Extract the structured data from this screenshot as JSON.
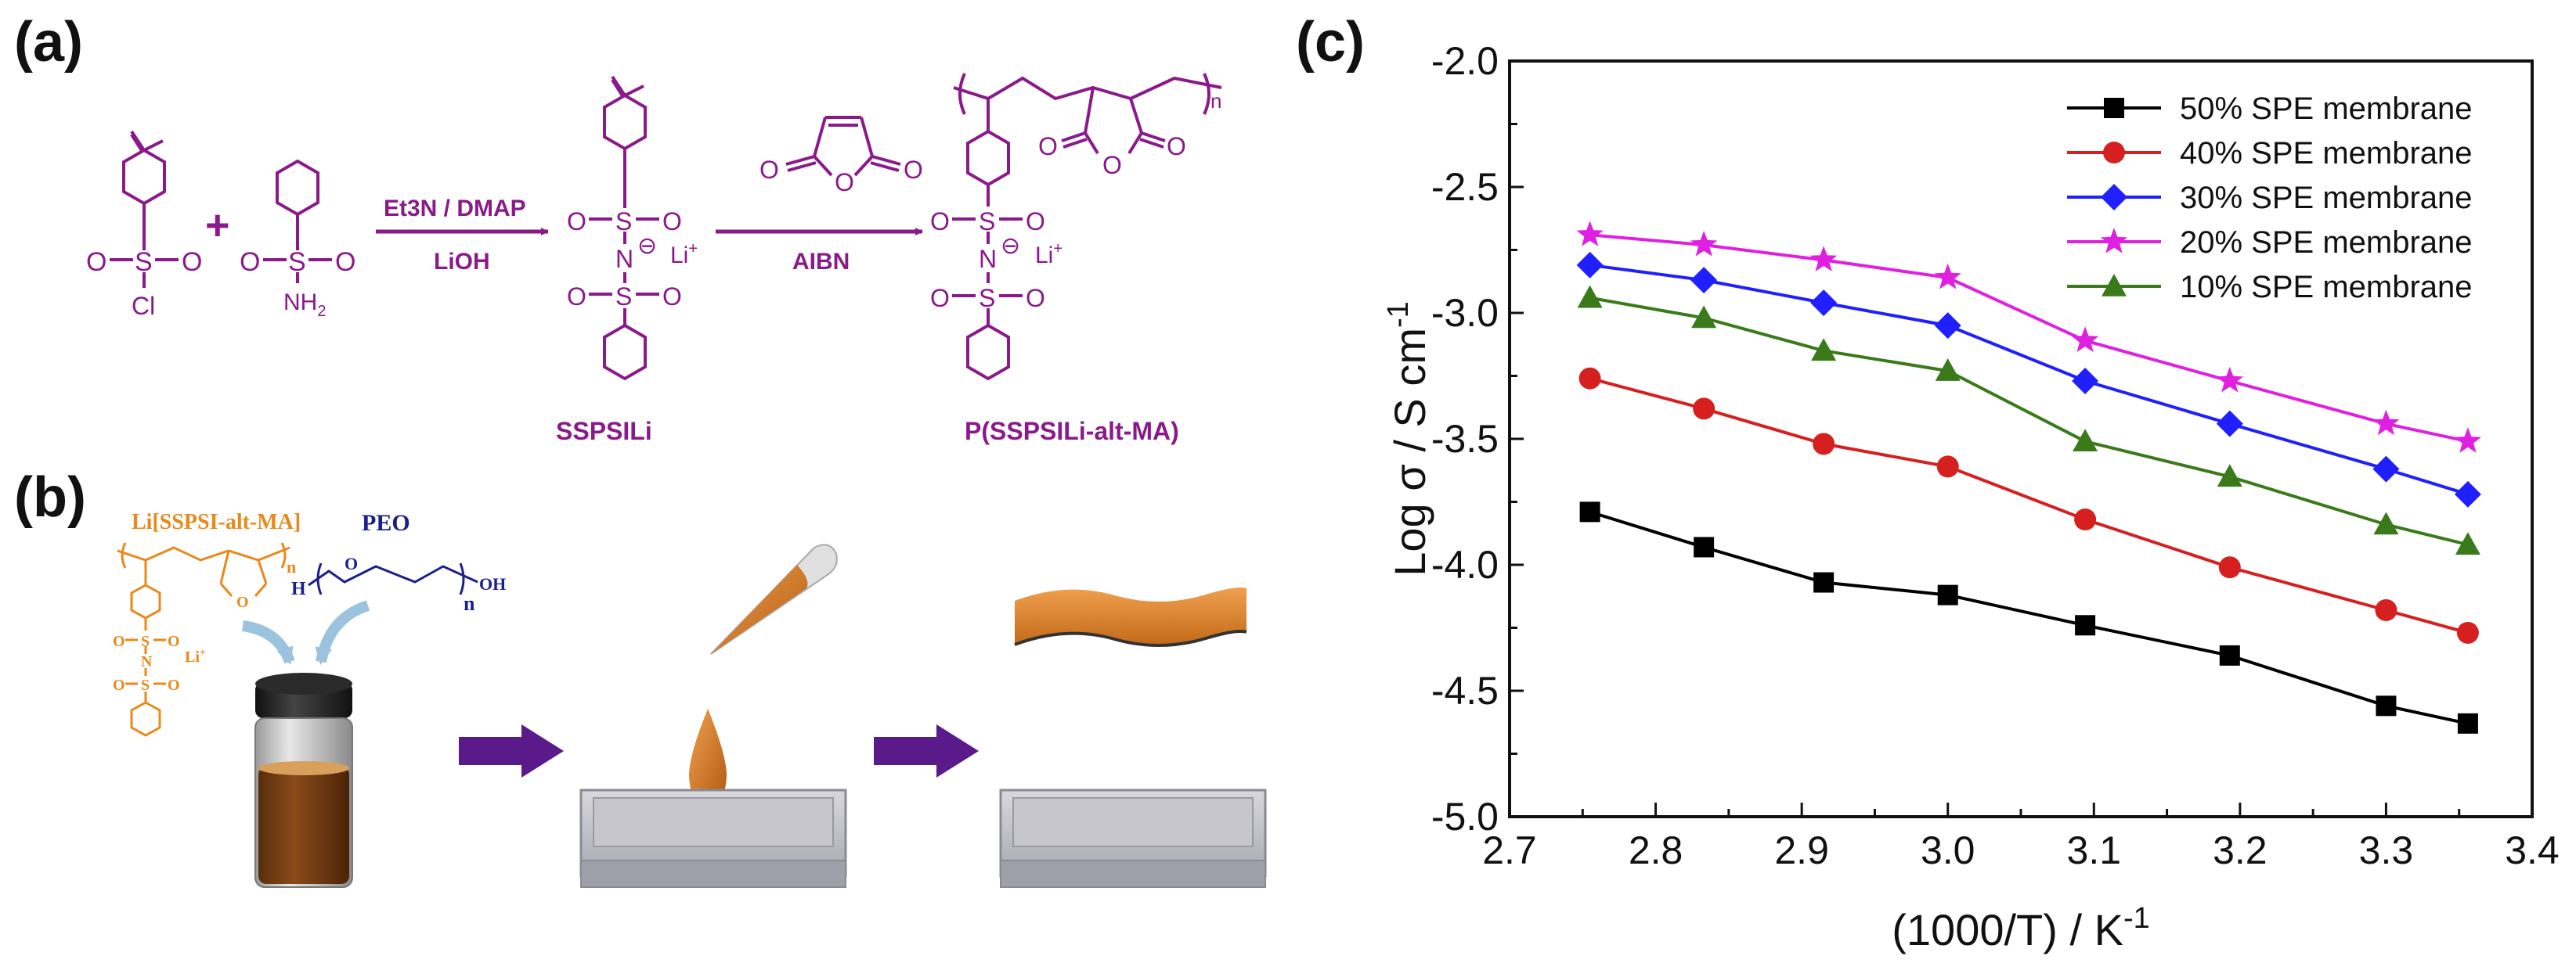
{
  "panels": {
    "a": "(a)",
    "b": "(b)",
    "c": "(c)"
  },
  "scheme_a": {
    "reagent1": "Et3N / DMAP",
    "reagent2": "LiOH",
    "reagent3": "AIBN",
    "product1": "SSPSILi",
    "product2": "P(SSPSILi-alt-MA)",
    "plus": "+",
    "li": "Li",
    "n_sub": "n",
    "o": "O",
    "s": "S",
    "n": "N",
    "cl": "Cl",
    "nh": "NH",
    "nh_sub": "2",
    "minus": "⊖"
  },
  "scheme_b": {
    "polymer_label": "Li[SSPSI-alt-MA]",
    "peo_label": "PEO",
    "h": "H",
    "oh": "OH",
    "n_sub": "n",
    "o": "O",
    "li": "Li",
    "s": "S",
    "n": "N"
  },
  "colors": {
    "purple": "#8a1a8a",
    "orange": "#e8891a",
    "navy": "#1a1f8a",
    "arrow": "#5a1a8a",
    "black_series": "#000000",
    "red_series": "#d62020",
    "blue_series": "#1f1fff",
    "magenta_series": "#e020e0",
    "green_series": "#3a7a1a"
  },
  "chart_data": {
    "type": "line",
    "title": "",
    "xlabel": "(1000/T) / K",
    "xlabel_sup": "-1",
    "ylabel": "Log σ / S cm",
    "ylabel_sup": "-1",
    "xlim": [
      2.7,
      3.4
    ],
    "ylim": [
      -5.0,
      -2.0
    ],
    "xticks": [
      "2.7",
      "2.8",
      "2.9",
      "3.0",
      "3.1",
      "3.2",
      "3.3",
      "3.4"
    ],
    "yticks": [
      "-2.0",
      "-2.5",
      "-3.0",
      "-3.5",
      "-4.0",
      "-4.5",
      "-5.0"
    ],
    "x": [
      2.755,
      2.833,
      2.915,
      3.0,
      3.094,
      3.193,
      3.3,
      3.356
    ],
    "legend_position": "top-right",
    "series": [
      {
        "name": "50% SPE membrane",
        "marker": "square",
        "color": "#000000",
        "values": [
          -3.79,
          -3.93,
          -4.07,
          -4.12,
          -4.24,
          -4.36,
          -4.56,
          -4.63
        ]
      },
      {
        "name": "40% SPE membrane",
        "marker": "circle",
        "color": "#d62020",
        "values": [
          -3.26,
          -3.38,
          -3.52,
          -3.61,
          -3.82,
          -4.01,
          -4.18,
          -4.27
        ]
      },
      {
        "name": "30% SPE membrane",
        "marker": "diamond",
        "color": "#1f1fff",
        "values": [
          -2.81,
          -2.87,
          -2.96,
          -3.05,
          -3.27,
          -3.44,
          -3.62,
          -3.72
        ]
      },
      {
        "name": "20% SPE membrane",
        "marker": "star",
        "color": "#e020e0",
        "values": [
          -2.69,
          -2.73,
          -2.79,
          -2.86,
          -3.11,
          -3.27,
          -3.44,
          -3.51
        ]
      },
      {
        "name": "10% SPE membrane",
        "marker": "triangle",
        "color": "#3a7a1a",
        "values": [
          -2.94,
          -3.02,
          -3.15,
          -3.23,
          -3.51,
          -3.65,
          -3.84,
          -3.92
        ]
      }
    ]
  }
}
